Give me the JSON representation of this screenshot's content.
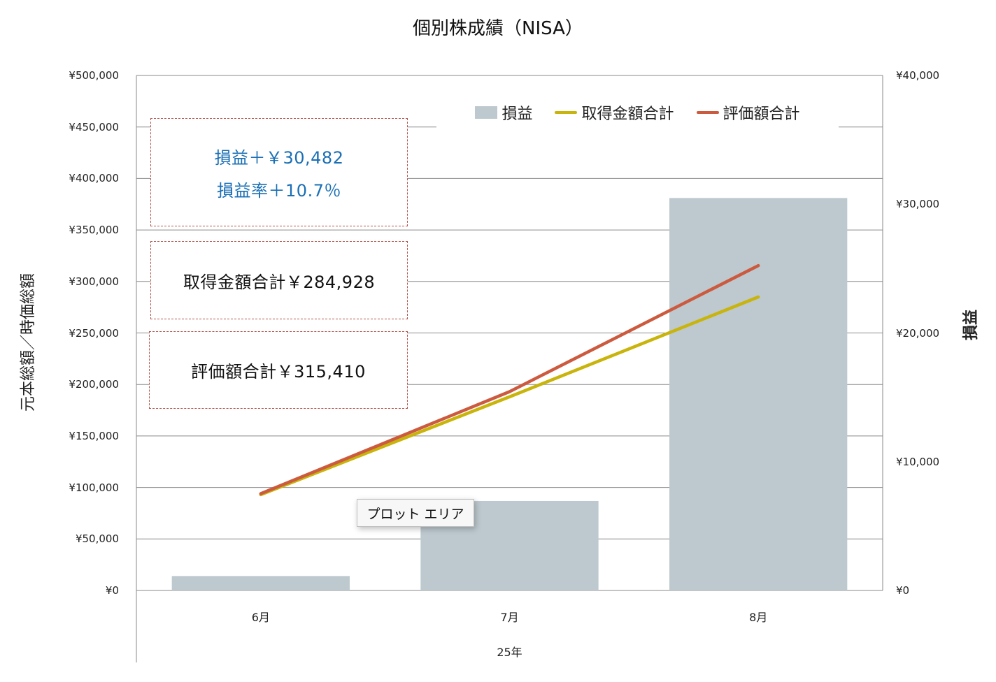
{
  "chart_data": {
    "type": "bar",
    "title": "個別株成績（NISA）",
    "categories": [
      "6月",
      "7月",
      "8月"
    ],
    "category_group_label": "25年",
    "ylabel": "元本総額／時価総額",
    "y2label": "損益",
    "ylim": [
      0,
      500000
    ],
    "y2lim": [
      0,
      40000
    ],
    "yticks": [
      "¥0",
      "¥50,000",
      "¥100,000",
      "¥150,000",
      "¥200,000",
      "¥250,000",
      "¥300,000",
      "¥350,000",
      "¥400,000",
      "¥450,000",
      "¥500,000"
    ],
    "y2ticks": [
      "¥0",
      "¥10,000",
      "¥20,000",
      "¥30,000",
      "¥40,000"
    ],
    "grid": true,
    "legend_position": "top-right",
    "series": [
      {
        "name": "損益",
        "type": "bar",
        "axis": "right",
        "color": "#bdc9cf",
        "values": [
          1120,
          6950,
          30482
        ]
      },
      {
        "name": "取得金額合計",
        "type": "line",
        "axis": "left",
        "color": "#c8b40a",
        "values": [
          93000,
          188000,
          284928
        ]
      },
      {
        "name": "評価額合計",
        "type": "line",
        "axis": "left",
        "color": "#cc5a3f",
        "values": [
          94000,
          193000,
          315410
        ]
      }
    ],
    "annotations": [
      {
        "id": "profit",
        "lines": [
          "損益＋￥30,482",
          "損益率＋10.7％"
        ]
      },
      {
        "id": "cost",
        "lines": [
          "取得金額合計￥284,928"
        ]
      },
      {
        "id": "value",
        "lines": [
          "評価額合計￥315,410"
        ]
      }
    ]
  },
  "tooltip": {
    "label": "プロット エリア"
  }
}
